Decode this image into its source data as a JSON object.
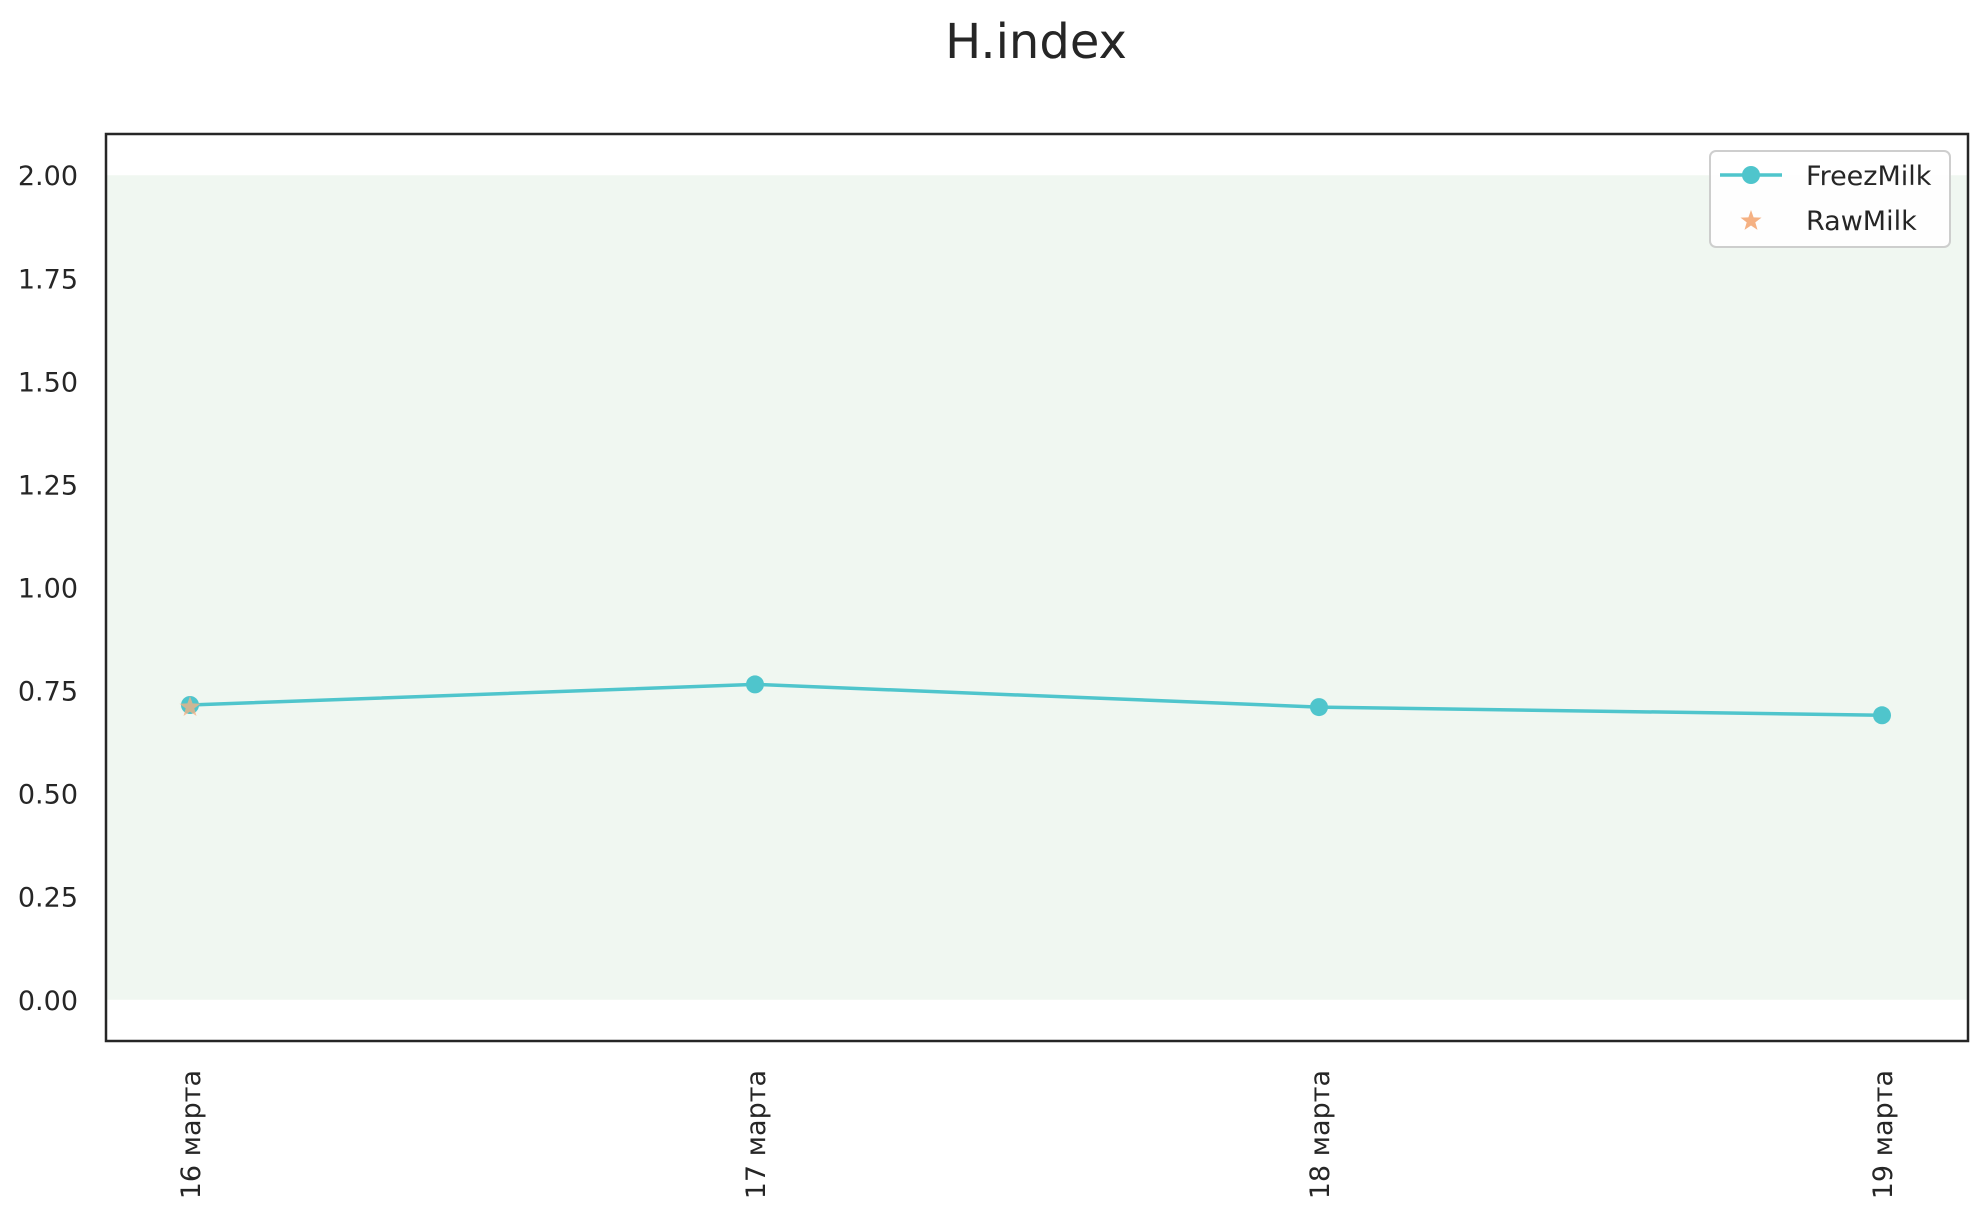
{
  "chart_data": {
    "type": "line",
    "title": "H.index",
    "xlabel": "",
    "ylabel": "",
    "categories": [
      "16 марта",
      "17 марта",
      "18 марта",
      "19 марта"
    ],
    "ylim": [
      -0.1,
      2.1
    ],
    "yticks": [
      0.0,
      0.25,
      0.5,
      0.75,
      1.0,
      1.25,
      1.5,
      1.75,
      2.0
    ],
    "ytick_labels": [
      "0.00",
      "0.25",
      "0.50",
      "0.75",
      "1.00",
      "1.25",
      "1.50",
      "1.75",
      "2.00"
    ],
    "band": {
      "from": 0.0,
      "to": 2.0,
      "color": "#f0f7f1"
    },
    "grid": false,
    "legend_position": "top-right",
    "series": [
      {
        "name": "FreezMilk",
        "kind": "line-marker",
        "color": "#4fc5cc",
        "values": [
          0.715,
          0.765,
          0.71,
          0.69
        ]
      },
      {
        "name": "RawMilk",
        "kind": "scatter-star",
        "color": "#f5b183",
        "values": [
          0.71,
          null,
          null,
          null
        ]
      }
    ]
  }
}
